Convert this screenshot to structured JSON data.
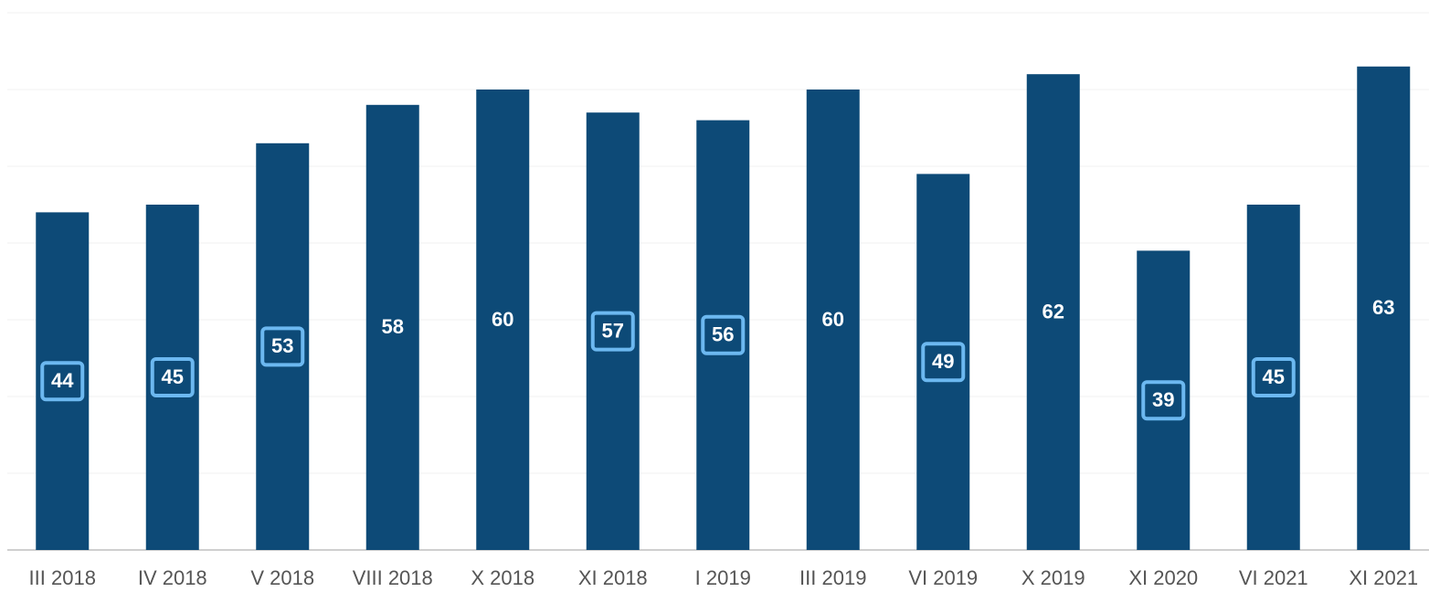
{
  "chart_data": {
    "type": "bar",
    "categories": [
      "III 2018",
      "IV 2018",
      "V 2018",
      "VIII 2018",
      "X 2018",
      "XI 2018",
      "I 2019",
      "III 2019",
      "VI 2019",
      "X 2019",
      "XI 2020",
      "VI 2021",
      "XI 2021"
    ],
    "values": [
      44,
      45,
      53,
      58,
      60,
      57,
      56,
      60,
      49,
      62,
      39,
      45,
      63
    ],
    "value_label_boxed": [
      true,
      true,
      true,
      false,
      false,
      true,
      true,
      false,
      true,
      false,
      true,
      true,
      false
    ],
    "color": "#0d4a77",
    "box_color": "#6cb8f0",
    "ylim": [
      0,
      70
    ],
    "yticks": [
      0,
      10,
      20,
      30,
      40,
      50,
      60,
      70
    ],
    "grid": true
  }
}
